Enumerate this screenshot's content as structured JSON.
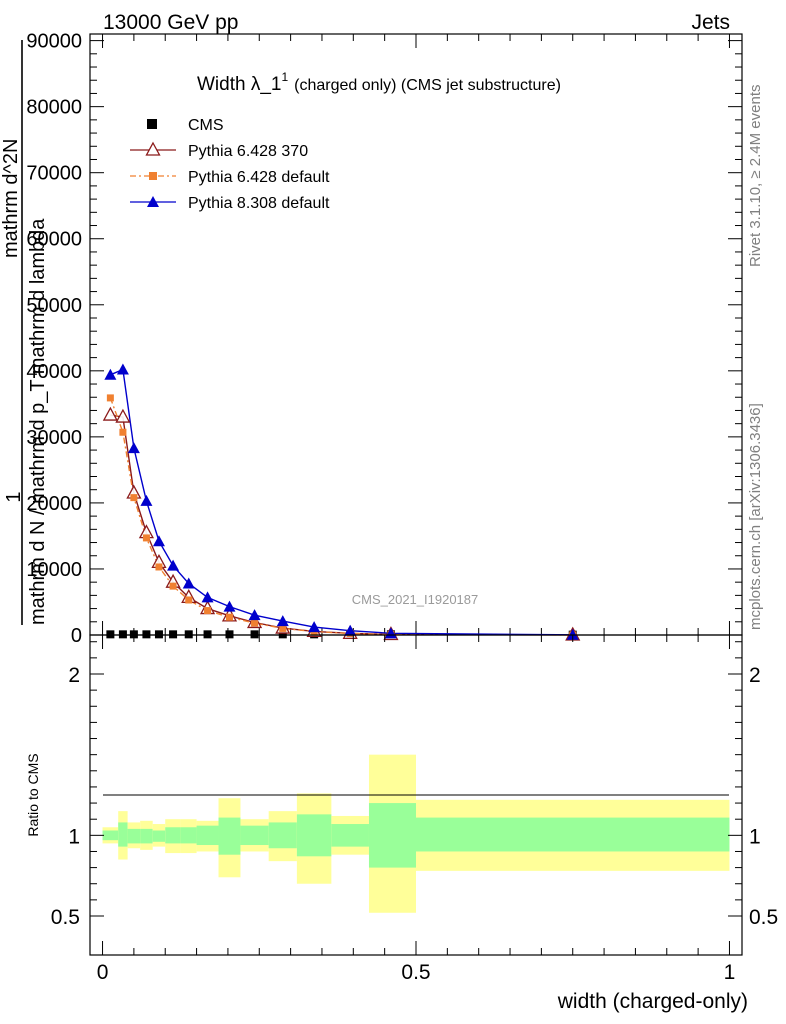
{
  "header": {
    "left": "13000 GeV pp",
    "right": "Jets"
  },
  "title": {
    "main": "Width λ_1",
    "sup": "1",
    "suffix": "(charged only) (CMS jet substructure)"
  },
  "side_labels": {
    "rivet": "Rivet 3.1.10, ≥ 2.4M events",
    "mcplots": "mcplots.cern.ch [arXiv:1306.3436]"
  },
  "watermark": "CMS_2021_I1920187",
  "legend": [
    {
      "label": "CMS"
    },
    {
      "label": "Pythia 6.428 370"
    },
    {
      "label": "Pythia 6.428 default"
    },
    {
      "label": "Pythia 8.308 default"
    }
  ],
  "axes": {
    "ylabel_upper_num": "1",
    "ylabel_upper_garbled_1": "mathrm d N / mathrm d p_T mathrm d lambda",
    "ylabel_upper_garbled_2": "mathrm d^2N",
    "ylabel_ratio": "Ratio to CMS",
    "xlabel": "width (charged-only)"
  },
  "colors": {
    "cms": "#000000",
    "p6_370": "#8b1a1a",
    "p6_default": "#f08030",
    "p8_default": "#0000cc",
    "band_inner": "#99ff99",
    "band_outer": "#ffff99"
  },
  "chart_data": [
    {
      "type": "line",
      "name": "main",
      "xlim": [
        -0.02,
        1.02
      ],
      "ylim": [
        0,
        91000
      ],
      "yticks": [
        0,
        10000,
        20000,
        30000,
        40000,
        50000,
        60000,
        70000,
        80000,
        90000
      ],
      "ytick_labels": [
        "0",
        "10000",
        "20000",
        "30000",
        "40000",
        "50000",
        "60000",
        "70000",
        "80000",
        "90000"
      ],
      "x": [
        0.0125,
        0.0325,
        0.05,
        0.07,
        0.09,
        0.1125,
        0.1375,
        0.1675,
        0.2025,
        0.2425,
        0.2875,
        0.3375,
        0.395,
        0.46,
        0.75
      ],
      "series": [
        {
          "name": "CMS",
          "marker": "square",
          "values": [
            100,
            100,
            100,
            100,
            100,
            100,
            100,
            100,
            100,
            100,
            100,
            100,
            100,
            100,
            50
          ]
        },
        {
          "name": "Pythia 6.428 370",
          "marker": "open-triangle",
          "values": [
            33300,
            33000,
            21500,
            15500,
            11000,
            8000,
            5700,
            4000,
            2900,
            1900,
            1050,
            550,
            250,
            80,
            10
          ]
        },
        {
          "name": "Pythia 6.428 default",
          "marker": "square-small",
          "values": [
            35900,
            30700,
            20800,
            14700,
            10300,
            7400,
            5300,
            3700,
            2700,
            1800,
            1000,
            520,
            230,
            70,
            10
          ]
        },
        {
          "name": "Pythia 8.308 default",
          "marker": "filled-triangle",
          "values": [
            39400,
            40200,
            28300,
            20300,
            14200,
            10500,
            7800,
            5700,
            4300,
            3000,
            2100,
            1200,
            650,
            250,
            30
          ]
        }
      ]
    },
    {
      "type": "area",
      "name": "ratio",
      "xlim": [
        -0.02,
        1.02
      ],
      "ylim": [
        0.4,
        2.3
      ],
      "yticks": [
        0.5,
        1,
        2
      ],
      "ytick_labels": [
        "0.5",
        "1",
        "2"
      ],
      "xticks": [
        0,
        0.5,
        1
      ],
      "xtick_labels": [
        "0",
        "0.5",
        "1"
      ],
      "bins": [
        {
          "lo": 0.0,
          "hi": 0.025,
          "inner": [
            0.97,
            1.03
          ],
          "outer": [
            0.95,
            1.05
          ]
        },
        {
          "lo": 0.025,
          "hi": 0.04,
          "inner": [
            0.93,
            1.08
          ],
          "outer": [
            0.85,
            1.15
          ]
        },
        {
          "lo": 0.04,
          "hi": 0.06,
          "inner": [
            0.95,
            1.04
          ],
          "outer": [
            0.92,
            1.08
          ]
        },
        {
          "lo": 0.06,
          "hi": 0.08,
          "inner": [
            0.95,
            1.04
          ],
          "outer": [
            0.91,
            1.09
          ]
        },
        {
          "lo": 0.08,
          "hi": 0.1,
          "inner": [
            0.96,
            1.03
          ],
          "outer": [
            0.93,
            1.07
          ]
        },
        {
          "lo": 0.1,
          "hi": 0.125,
          "inner": [
            0.95,
            1.05
          ],
          "outer": [
            0.89,
            1.1
          ]
        },
        {
          "lo": 0.125,
          "hi": 0.15,
          "inner": [
            0.95,
            1.05
          ],
          "outer": [
            0.89,
            1.1
          ]
        },
        {
          "lo": 0.15,
          "hi": 0.185,
          "inner": [
            0.94,
            1.06
          ],
          "outer": [
            0.9,
            1.09
          ]
        },
        {
          "lo": 0.185,
          "hi": 0.22,
          "inner": [
            0.88,
            1.11
          ],
          "outer": [
            0.74,
            1.23
          ]
        },
        {
          "lo": 0.22,
          "hi": 0.265,
          "inner": [
            0.94,
            1.06
          ],
          "outer": [
            0.9,
            1.1
          ]
        },
        {
          "lo": 0.265,
          "hi": 0.31,
          "inner": [
            0.92,
            1.08
          ],
          "outer": [
            0.84,
            1.15
          ]
        },
        {
          "lo": 0.31,
          "hi": 0.365,
          "inner": [
            0.87,
            1.13
          ],
          "outer": [
            0.7,
            1.26
          ]
        },
        {
          "lo": 0.365,
          "hi": 0.425,
          "inner": [
            0.93,
            1.07
          ],
          "outer": [
            0.88,
            1.12
          ]
        },
        {
          "lo": 0.425,
          "hi": 0.5,
          "inner": [
            0.8,
            1.2
          ],
          "outer": [
            0.52,
            1.5
          ]
        },
        {
          "lo": 0.5,
          "hi": 1.0,
          "inner": [
            0.9,
            1.11
          ],
          "outer": [
            0.78,
            1.22
          ]
        }
      ]
    }
  ]
}
